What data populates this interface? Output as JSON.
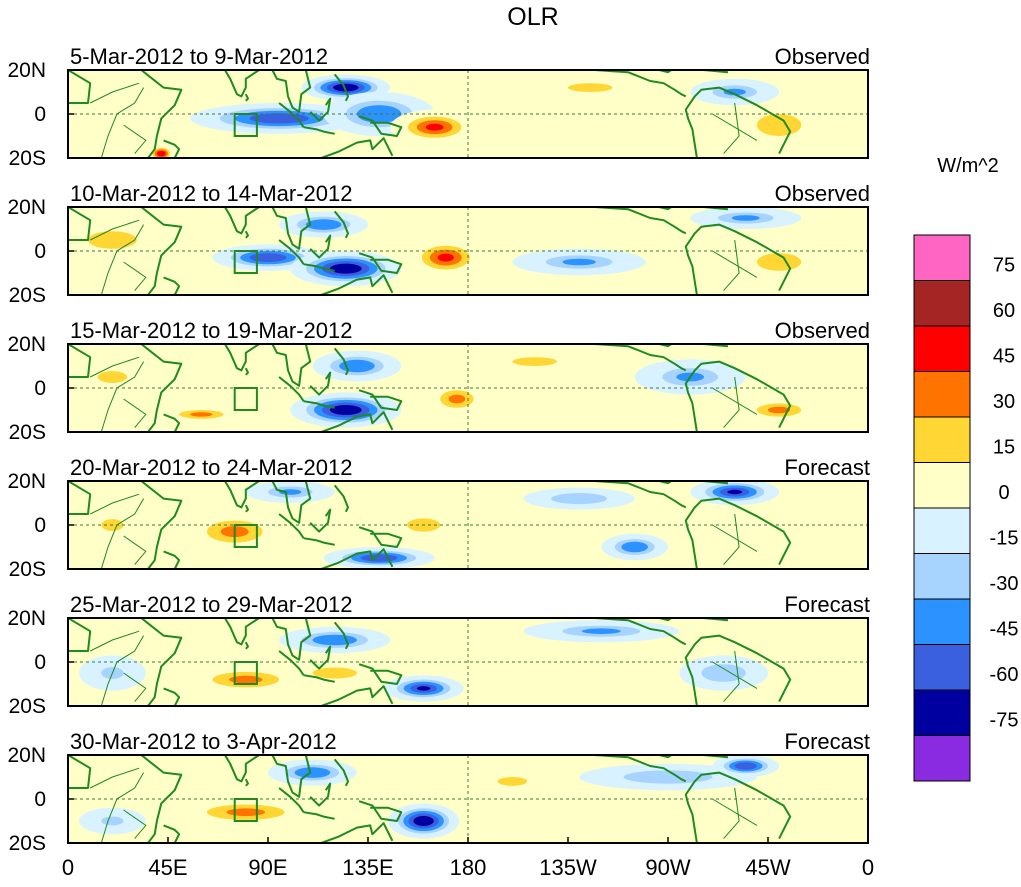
{
  "chart_data": {
    "type": "heatmap",
    "title": "OLR",
    "units_label": "W/m^2",
    "x_tick_labels": [
      "0",
      "45E",
      "90E",
      "135E",
      "180",
      "135W",
      "90W",
      "45W",
      "0"
    ],
    "x_tick_lons": [
      0,
      45,
      90,
      135,
      180,
      225,
      270,
      315,
      360
    ],
    "y_tick_labels": [
      "20N",
      "0",
      "20S"
    ],
    "y_tick_lats": [
      20,
      0,
      -20
    ],
    "lon_range": [
      0,
      360
    ],
    "lat_range": [
      -20,
      20
    ],
    "colorbar": {
      "labels": [
        "75",
        "60",
        "45",
        "30",
        "15",
        "0",
        "-15",
        "-30",
        "-45",
        "-60",
        "-75"
      ],
      "levels": [
        75,
        60,
        45,
        30,
        15,
        0,
        -15,
        -30,
        -45,
        -60,
        -75
      ],
      "colors": [
        "#ff66c4",
        "#a52525",
        "#ff0000",
        "#ff7300",
        "#ffd633",
        "#ffffc8",
        "#d8f2ff",
        "#a6d3ff",
        "#2c92ff",
        "#3a60e0",
        "#0000a0",
        "#8a2be2"
      ]
    },
    "panels": [
      {
        "period": "5-Mar-2012 to 9-Mar-2012",
        "kind": "Observed",
        "anomalies": [
          {
            "lon": 95,
            "lat": -2,
            "rlon": 40,
            "rlat": 7,
            "value": -55
          },
          {
            "lon": 125,
            "lat": 12,
            "rlon": 20,
            "rlat": 6,
            "value": -70
          },
          {
            "lon": 140,
            "lat": 0,
            "rlon": 25,
            "rlat": 10,
            "value": -45
          },
          {
            "lon": 165,
            "lat": -6,
            "rlon": 20,
            "rlat": 8,
            "value": 50
          },
          {
            "lon": 42,
            "lat": -18,
            "rlon": 6,
            "rlat": 4,
            "value": 55
          },
          {
            "lon": 235,
            "lat": 12,
            "rlon": 30,
            "rlat": 6,
            "value": 18
          },
          {
            "lon": 300,
            "lat": 10,
            "rlon": 20,
            "rlat": 6,
            "value": -35
          },
          {
            "lon": 320,
            "lat": -5,
            "rlon": 20,
            "rlat": 10,
            "value": 25
          }
        ]
      },
      {
        "period": "10-Mar-2012 to 14-Mar-2012",
        "kind": "Observed",
        "anomalies": [
          {
            "lon": 90,
            "lat": -3,
            "rlon": 25,
            "rlat": 6,
            "value": -55
          },
          {
            "lon": 125,
            "lat": -8,
            "rlon": 25,
            "rlat": 8,
            "value": -75
          },
          {
            "lon": 115,
            "lat": 12,
            "rlon": 20,
            "rlat": 6,
            "value": -40
          },
          {
            "lon": 170,
            "lat": -3,
            "rlon": 18,
            "rlat": 9,
            "value": 50
          },
          {
            "lon": 20,
            "lat": 5,
            "rlon": 22,
            "rlat": 8,
            "value": 25
          },
          {
            "lon": 230,
            "lat": -5,
            "rlon": 30,
            "rlat": 6,
            "value": -35
          },
          {
            "lon": 305,
            "lat": 15,
            "rlon": 25,
            "rlat": 5,
            "value": -35
          },
          {
            "lon": 320,
            "lat": -5,
            "rlon": 20,
            "rlat": 8,
            "value": 25
          }
        ]
      },
      {
        "period": "15-Mar-2012 to 19-Mar-2012",
        "kind": "Observed",
        "anomalies": [
          {
            "lon": 125,
            "lat": -10,
            "rlon": 25,
            "rlat": 8,
            "value": -75
          },
          {
            "lon": 130,
            "lat": 10,
            "rlon": 20,
            "rlat": 7,
            "value": -40
          },
          {
            "lon": 175,
            "lat": -5,
            "rlon": 15,
            "rlat": 8,
            "value": 35
          },
          {
            "lon": 60,
            "lat": -12,
            "rlon": 20,
            "rlat": 4,
            "value": 30
          },
          {
            "lon": 20,
            "lat": 5,
            "rlon": 20,
            "rlat": 8,
            "value": 20
          },
          {
            "lon": 210,
            "lat": 12,
            "rlon": 30,
            "rlat": 6,
            "value": 18
          },
          {
            "lon": 280,
            "lat": 5,
            "rlon": 25,
            "rlat": 8,
            "value": -35
          },
          {
            "lon": 320,
            "lat": -10,
            "rlon": 20,
            "rlat": 6,
            "value": 30
          }
        ]
      },
      {
        "period": "20-Mar-2012 to 24-Mar-2012",
        "kind": "Forecast",
        "anomalies": [
          {
            "lon": 75,
            "lat": -3,
            "rlon": 25,
            "rlat": 10,
            "value": 35
          },
          {
            "lon": 140,
            "lat": -15,
            "rlon": 25,
            "rlat": 5,
            "value": -55
          },
          {
            "lon": 100,
            "lat": 15,
            "rlon": 20,
            "rlat": 5,
            "value": -35
          },
          {
            "lon": 160,
            "lat": 0,
            "rlon": 15,
            "rlat": 6,
            "value": 25
          },
          {
            "lon": 300,
            "lat": 15,
            "rlon": 20,
            "rlat": 6,
            "value": -65
          },
          {
            "lon": 255,
            "lat": -10,
            "rlon": 15,
            "rlat": 6,
            "value": -45
          },
          {
            "lon": 230,
            "lat": 12,
            "rlon": 25,
            "rlat": 5,
            "value": -25
          },
          {
            "lon": 20,
            "lat": 0,
            "rlon": 15,
            "rlat": 8,
            "value": 20
          }
        ]
      },
      {
        "period": "25-Mar-2012 to 29-Mar-2012",
        "kind": "Forecast",
        "anomalies": [
          {
            "lon": 80,
            "lat": -8,
            "rlon": 30,
            "rlat": 7,
            "value": 35
          },
          {
            "lon": 160,
            "lat": -12,
            "rlon": 18,
            "rlat": 6,
            "value": -65
          },
          {
            "lon": 120,
            "lat": 10,
            "rlon": 25,
            "rlat": 6,
            "value": -40
          },
          {
            "lon": 120,
            "lat": -5,
            "rlon": 20,
            "rlat": 5,
            "value": 25
          },
          {
            "lon": 240,
            "lat": 14,
            "rlon": 35,
            "rlat": 5,
            "value": -35
          },
          {
            "lon": 295,
            "lat": -5,
            "rlon": 20,
            "rlat": 8,
            "value": -30
          },
          {
            "lon": 20,
            "lat": -5,
            "rlon": 15,
            "rlat": 8,
            "value": -20
          }
        ]
      },
      {
        "period": "30-Mar-2012 to 3-Apr-2012",
        "kind": "Forecast",
        "anomalies": [
          {
            "lon": 80,
            "lat": -6,
            "rlon": 35,
            "rlat": 7,
            "value": 35
          },
          {
            "lon": 160,
            "lat": -10,
            "rlon": 16,
            "rlat": 8,
            "value": -75
          },
          {
            "lon": 110,
            "lat": 12,
            "rlon": 20,
            "rlat": 6,
            "value": -40
          },
          {
            "lon": 200,
            "lat": 8,
            "rlon": 20,
            "rlat": 6,
            "value": 18
          },
          {
            "lon": 270,
            "lat": 10,
            "rlon": 40,
            "rlat": 6,
            "value": -25
          },
          {
            "lon": 305,
            "lat": 15,
            "rlon": 15,
            "rlat": 5,
            "value": -55
          },
          {
            "lon": 20,
            "lat": -10,
            "rlon": 15,
            "rlat": 6,
            "value": -20
          }
        ]
      }
    ]
  }
}
